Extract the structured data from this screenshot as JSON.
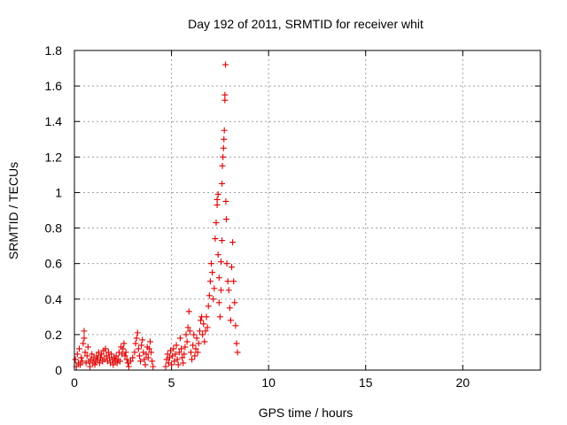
{
  "chart_data": {
    "type": "scatter",
    "title": "Day 192 of 2011, SRMTID for receiver whit",
    "xlabel": "GPS time / hours",
    "ylabel": "SRMTID / TECUs",
    "xlim": [
      0,
      24
    ],
    "ylim": [
      0,
      1.8
    ],
    "x_ticks": [
      0,
      5,
      10,
      15,
      20
    ],
    "y_ticks": [
      0,
      0.2,
      0.4,
      0.6,
      0.8,
      1,
      1.2,
      1.4,
      1.6,
      1.8
    ],
    "x_tick_labels": [
      "0",
      "5",
      "10",
      "15",
      "20"
    ],
    "y_tick_labels": [
      "0",
      "0.2",
      "0.4",
      "0.6",
      "0.8",
      "1",
      "1.2",
      "1.4",
      "1.6",
      "1.8"
    ],
    "grid": true,
    "marker": "+",
    "marker_color": "#e00000",
    "series": [
      {
        "name": "SRMTID",
        "points": [
          [
            0.05,
            0.06
          ],
          [
            0.1,
            0.02
          ],
          [
            0.15,
            0.09
          ],
          [
            0.2,
            0.04
          ],
          [
            0.25,
            0.12
          ],
          [
            0.3,
            0.03
          ],
          [
            0.35,
            0.07
          ],
          [
            0.4,
            0.05
          ],
          [
            0.45,
            0.15
          ],
          [
            0.5,
            0.22
          ],
          [
            0.5,
            0.18
          ],
          [
            0.55,
            0.1
          ],
          [
            0.6,
            0.04
          ],
          [
            0.65,
            0.08
          ],
          [
            0.7,
            0.13
          ],
          [
            0.75,
            0.05
          ],
          [
            0.8,
            0.02
          ],
          [
            0.85,
            0.06
          ],
          [
            0.9,
            0.09
          ],
          [
            0.95,
            0.04
          ],
          [
            1.0,
            0.07
          ],
          [
            1.05,
            0.03
          ],
          [
            1.1,
            0.05
          ],
          [
            1.15,
            0.08
          ],
          [
            1.2,
            0.06
          ],
          [
            1.25,
            0.1
          ],
          [
            1.3,
            0.04
          ],
          [
            1.35,
            0.07
          ],
          [
            1.4,
            0.09
          ],
          [
            1.45,
            0.05
          ],
          [
            1.5,
            0.11
          ],
          [
            1.55,
            0.06
          ],
          [
            1.6,
            0.12
          ],
          [
            1.65,
            0.08
          ],
          [
            1.7,
            0.05
          ],
          [
            1.75,
            0.1
          ],
          [
            1.8,
            0.07
          ],
          [
            1.85,
            0.04
          ],
          [
            1.9,
            0.09
          ],
          [
            1.95,
            0.06
          ],
          [
            2.0,
            0.03
          ],
          [
            2.05,
            0.07
          ],
          [
            2.1,
            0.05
          ],
          [
            2.15,
            0.08
          ],
          [
            2.2,
            0.04
          ],
          [
            2.25,
            0.06
          ],
          [
            2.3,
            0.1
          ],
          [
            2.35,
            0.05
          ],
          [
            2.4,
            0.13
          ],
          [
            2.45,
            0.09
          ],
          [
            2.5,
            0.12
          ],
          [
            2.55,
            0.15
          ],
          [
            2.6,
            0.08
          ],
          [
            2.65,
            0.1
          ],
          [
            2.7,
            0.06
          ],
          [
            2.75,
            0.04
          ],
          [
            2.8,
            0.02
          ],
          [
            2.9,
            0.05
          ],
          [
            3.0,
            0.07
          ],
          [
            3.1,
            0.1
          ],
          [
            3.15,
            0.15
          ],
          [
            3.2,
            0.18
          ],
          [
            3.25,
            0.21
          ],
          [
            3.3,
            0.12
          ],
          [
            3.35,
            0.08
          ],
          [
            3.4,
            0.05
          ],
          [
            3.45,
            0.14
          ],
          [
            3.5,
            0.17
          ],
          [
            3.55,
            0.1
          ],
          [
            3.6,
            0.06
          ],
          [
            3.65,
            0.03
          ],
          [
            3.7,
            0.09
          ],
          [
            3.75,
            0.13
          ],
          [
            3.8,
            0.07
          ],
          [
            3.85,
            0.12
          ],
          [
            3.9,
            0.16
          ],
          [
            3.95,
            0.1
          ],
          [
            4.0,
            0.05
          ],
          [
            4.05,
            0.02
          ],
          [
            4.7,
            0.02
          ],
          [
            4.75,
            0.06
          ],
          [
            4.8,
            0.09
          ],
          [
            4.85,
            0.04
          ],
          [
            4.9,
            0.07
          ],
          [
            4.95,
            0.11
          ],
          [
            5.0,
            0.03
          ],
          [
            5.05,
            0.08
          ],
          [
            5.1,
            0.12
          ],
          [
            5.15,
            0.05
          ],
          [
            5.2,
            0.09
          ],
          [
            5.25,
            0.14
          ],
          [
            5.3,
            0.06
          ],
          [
            5.35,
            0.03
          ],
          [
            5.4,
            0.1
          ],
          [
            5.45,
            0.18
          ],
          [
            5.5,
            0.12
          ],
          [
            5.55,
            0.07
          ],
          [
            5.6,
            0.04
          ],
          [
            5.65,
            0.09
          ],
          [
            5.7,
            0.13
          ],
          [
            5.75,
            0.2
          ],
          [
            5.8,
            0.16
          ],
          [
            5.85,
            0.24
          ],
          [
            5.9,
            0.33
          ],
          [
            5.95,
            0.22
          ],
          [
            6.0,
            0.1
          ],
          [
            6.05,
            0.06
          ],
          [
            6.1,
            0.14
          ],
          [
            6.15,
            0.2
          ],
          [
            6.2,
            0.08
          ],
          [
            6.25,
            0.12
          ],
          [
            6.3,
            0.18
          ],
          [
            6.35,
            0.1
          ],
          [
            6.4,
            0.15
          ],
          [
            6.45,
            0.22
          ],
          [
            6.5,
            0.28
          ],
          [
            6.55,
            0.3
          ],
          [
            6.6,
            0.2
          ],
          [
            6.65,
            0.26
          ],
          [
            6.7,
            0.16
          ],
          [
            6.75,
            0.22
          ],
          [
            6.8,
            0.3
          ],
          [
            6.85,
            0.24
          ],
          [
            6.9,
            0.36
          ],
          [
            6.95,
            0.42
          ],
          [
            7.0,
            0.5
          ],
          [
            7.05,
            0.6
          ],
          [
            7.1,
            0.55
          ],
          [
            7.15,
            0.4
          ],
          [
            7.2,
            0.46
          ],
          [
            7.25,
            0.74
          ],
          [
            7.3,
            0.83
          ],
          [
            7.35,
            0.93
          ],
          [
            7.35,
            0.96
          ],
          [
            7.4,
            0.99
          ],
          [
            7.4,
            0.65
          ],
          [
            7.45,
            0.52
          ],
          [
            7.45,
            0.38
          ],
          [
            7.5,
            0.3
          ],
          [
            7.55,
            0.45
          ],
          [
            7.55,
            0.61
          ],
          [
            7.6,
            0.73
          ],
          [
            7.6,
            1.05
          ],
          [
            7.62,
            1.15
          ],
          [
            7.65,
            1.2
          ],
          [
            7.68,
            1.25
          ],
          [
            7.7,
            1.3
          ],
          [
            7.72,
            1.35
          ],
          [
            7.75,
            1.52
          ],
          [
            7.75,
            1.55
          ],
          [
            7.78,
            1.72
          ],
          [
            7.8,
            0.95
          ],
          [
            7.82,
            0.85
          ],
          [
            7.85,
            0.6
          ],
          [
            7.9,
            0.5
          ],
          [
            7.95,
            0.45
          ],
          [
            8.0,
            0.35
          ],
          [
            8.05,
            0.28
          ],
          [
            8.1,
            0.58
          ],
          [
            8.15,
            0.72
          ],
          [
            8.2,
            0.5
          ],
          [
            8.25,
            0.38
          ],
          [
            8.3,
            0.25
          ],
          [
            8.35,
            0.15
          ],
          [
            8.4,
            0.1
          ]
        ]
      }
    ]
  }
}
